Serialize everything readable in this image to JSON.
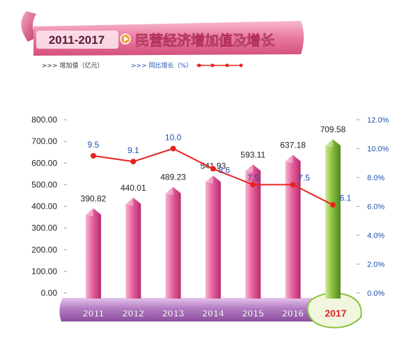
{
  "banner": {
    "year_range": "2011-2017",
    "title": "民营经济增加值及增长"
  },
  "legend": {
    "bar_label": ">>> 增加值（亿元）",
    "line_label": ">>> 同比增长（%）"
  },
  "colors": {
    "bar": "#e05a9a",
    "bar_highlight": "#8cc23e",
    "line": "#e8231f",
    "line_label": "#1f4fa8",
    "axis_text": "#222222",
    "banner": "#e8789e",
    "banner_title": "#ffffff",
    "year_range": "#5a1a3a",
    "highlight_year": "#d8262e"
  },
  "chart_data": {
    "type": "bar",
    "categories": [
      "2011",
      "2012",
      "2013",
      "2014",
      "2015",
      "2016",
      "2017"
    ],
    "series": [
      {
        "name": "增加值（亿元）",
        "type": "bar",
        "values": [
          390.82,
          440.01,
          489.23,
          541.93,
          593.11,
          637.18,
          709.58
        ],
        "labels": [
          "390.82",
          "440.01",
          "489.23",
          "541.93",
          "593.11",
          "637.18",
          "709.58"
        ]
      },
      {
        "name": "同比增长（%）",
        "type": "line",
        "axis": "right",
        "values": [
          9.5,
          9.1,
          10.0,
          8.6,
          7.5,
          7.5,
          6.1
        ],
        "labels": [
          "9.5",
          "9.1",
          "10.0",
          "8.6",
          "7.5",
          "7.5",
          "6.1"
        ]
      }
    ],
    "highlight_category": "2017",
    "y_left": {
      "ticks": [
        "0.00",
        "100.00",
        "200.00",
        "300.00",
        "400.00",
        "500.00",
        "600.00",
        "700.00",
        "800.00"
      ],
      "ylim": [
        0,
        800
      ]
    },
    "y_right": {
      "ticks": [
        "0.0%",
        "2.0%",
        "4.0%",
        "6.0%",
        "8.0%",
        "10.0%",
        "12.0%"
      ],
      "ylim": [
        0,
        12
      ]
    },
    "grid": false
  }
}
